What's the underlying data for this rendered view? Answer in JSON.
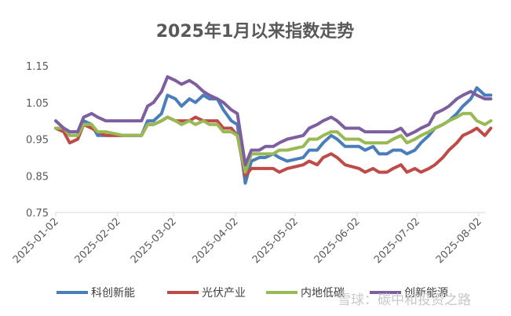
{
  "chart_data": {
    "type": "line",
    "title": "2025年1月以来指数走势",
    "xlabel": "",
    "ylabel": "",
    "ylim": [
      0.75,
      1.15
    ],
    "yticks": [
      "1.15",
      "1.05",
      "0.95",
      "0.85",
      "0.75"
    ],
    "ytick_values": [
      1.15,
      1.05,
      0.95,
      0.85,
      0.75
    ],
    "xtick_labels": [
      "2025-01-02",
      "2025-02-02",
      "2025-03-02",
      "2025-04-02",
      "2025-05-02",
      "2025-06-02",
      "2025-07-02",
      "2025-08-02"
    ],
    "grid": false,
    "legend_position": "bottom",
    "x": [
      "2025-01-02",
      "2025-01-06",
      "2025-01-09",
      "2025-01-13",
      "2025-01-16",
      "2025-01-20",
      "2025-01-23",
      "2025-01-27",
      "2025-02-05",
      "2025-02-10",
      "2025-02-14",
      "2025-02-17",
      "2025-02-20",
      "2025-02-24",
      "2025-02-27",
      "2025-03-03",
      "2025-03-06",
      "2025-03-10",
      "2025-03-13",
      "2025-03-17",
      "2025-03-20",
      "2025-03-24",
      "2025-03-27",
      "2025-03-31",
      "2025-04-03",
      "2025-04-07",
      "2025-04-10",
      "2025-04-14",
      "2025-04-17",
      "2025-04-21",
      "2025-04-24",
      "2025-04-28",
      "2025-05-06",
      "2025-05-09",
      "2025-05-13",
      "2025-05-16",
      "2025-05-20",
      "2025-05-23",
      "2025-05-27",
      "2025-06-03",
      "2025-06-06",
      "2025-06-10",
      "2025-06-13",
      "2025-06-17",
      "2025-06-20",
      "2025-06-24",
      "2025-06-27",
      "2025-07-01",
      "2025-07-04",
      "2025-07-08",
      "2025-07-11",
      "2025-07-15",
      "2025-07-18",
      "2025-07-22",
      "2025-07-25",
      "2025-07-29",
      "2025-08-01",
      "2025-08-05",
      "2025-08-08"
    ],
    "series": [
      {
        "name": "科创新能",
        "color": "#4a7ebb",
        "values": [
          0.98,
          0.98,
          0.97,
          0.97,
          1.0,
          0.99,
          0.96,
          0.96,
          0.96,
          0.96,
          0.96,
          1.0,
          1.0,
          1.02,
          1.07,
          1.06,
          1.04,
          1.06,
          1.05,
          1.07,
          1.06,
          1.06,
          1.03,
          1.0,
          0.99,
          0.83,
          0.89,
          0.9,
          0.9,
          0.91,
          0.9,
          0.89,
          0.9,
          0.92,
          0.92,
          0.94,
          0.96,
          0.95,
          0.93,
          0.93,
          0.92,
          0.93,
          0.91,
          0.91,
          0.92,
          0.92,
          0.91,
          0.92,
          0.94,
          0.96,
          0.98,
          0.99,
          1.0,
          1.02,
          1.04,
          1.06,
          1.09,
          1.07,
          1.07
        ]
      },
      {
        "name": "光伏产业",
        "color": "#be4b48",
        "values": [
          0.98,
          0.97,
          0.94,
          0.95,
          0.99,
          0.98,
          0.97,
          0.96,
          0.96,
          0.96,
          0.96,
          0.99,
          0.99,
          1.0,
          1.01,
          1.0,
          1.0,
          1.0,
          1.01,
          1.0,
          1.0,
          1.0,
          0.98,
          0.98,
          0.96,
          0.85,
          0.87,
          0.87,
          0.87,
          0.87,
          0.86,
          0.87,
          0.88,
          0.89,
          0.88,
          0.9,
          0.91,
          0.9,
          0.88,
          0.87,
          0.86,
          0.87,
          0.86,
          0.86,
          0.87,
          0.88,
          0.86,
          0.87,
          0.86,
          0.87,
          0.88,
          0.9,
          0.92,
          0.94,
          0.96,
          0.97,
          0.98,
          0.96,
          0.98
        ]
      },
      {
        "name": "内地低碳",
        "color": "#98b954",
        "values": [
          0.98,
          0.98,
          0.96,
          0.96,
          0.99,
          0.99,
          0.97,
          0.97,
          0.96,
          0.96,
          0.96,
          0.99,
          0.99,
          1.0,
          1.01,
          1.0,
          0.99,
          1.0,
          0.99,
          1.0,
          0.99,
          0.99,
          0.97,
          0.97,
          0.96,
          0.86,
          0.91,
          0.91,
          0.91,
          0.91,
          0.92,
          0.92,
          0.93,
          0.95,
          0.95,
          0.96,
          0.97,
          0.97,
          0.95,
          0.95,
          0.94,
          0.94,
          0.94,
          0.94,
          0.95,
          0.96,
          0.94,
          0.95,
          0.96,
          0.97,
          0.98,
          0.99,
          1.0,
          1.01,
          1.02,
          1.02,
          1.0,
          0.99,
          1.0
        ]
      },
      {
        "name": "创新能源",
        "color": "#7d5fa0",
        "values": [
          1.0,
          0.98,
          0.97,
          0.97,
          1.01,
          1.02,
          1.01,
          1.0,
          1.0,
          1.0,
          1.0,
          1.04,
          1.05,
          1.08,
          1.12,
          1.11,
          1.1,
          1.11,
          1.1,
          1.08,
          1.07,
          1.06,
          1.05,
          1.03,
          1.02,
          0.88,
          0.92,
          0.92,
          0.93,
          0.93,
          0.94,
          0.95,
          0.96,
          0.98,
          0.99,
          1.0,
          1.01,
          1.0,
          0.98,
          0.98,
          0.97,
          0.97,
          0.97,
          0.97,
          0.97,
          0.98,
          0.96,
          0.97,
          0.98,
          0.99,
          1.02,
          1.03,
          1.04,
          1.06,
          1.07,
          1.08,
          1.07,
          1.06,
          1.06
        ]
      }
    ]
  },
  "watermark": {
    "text": "雪球：碳中和投资之路"
  }
}
